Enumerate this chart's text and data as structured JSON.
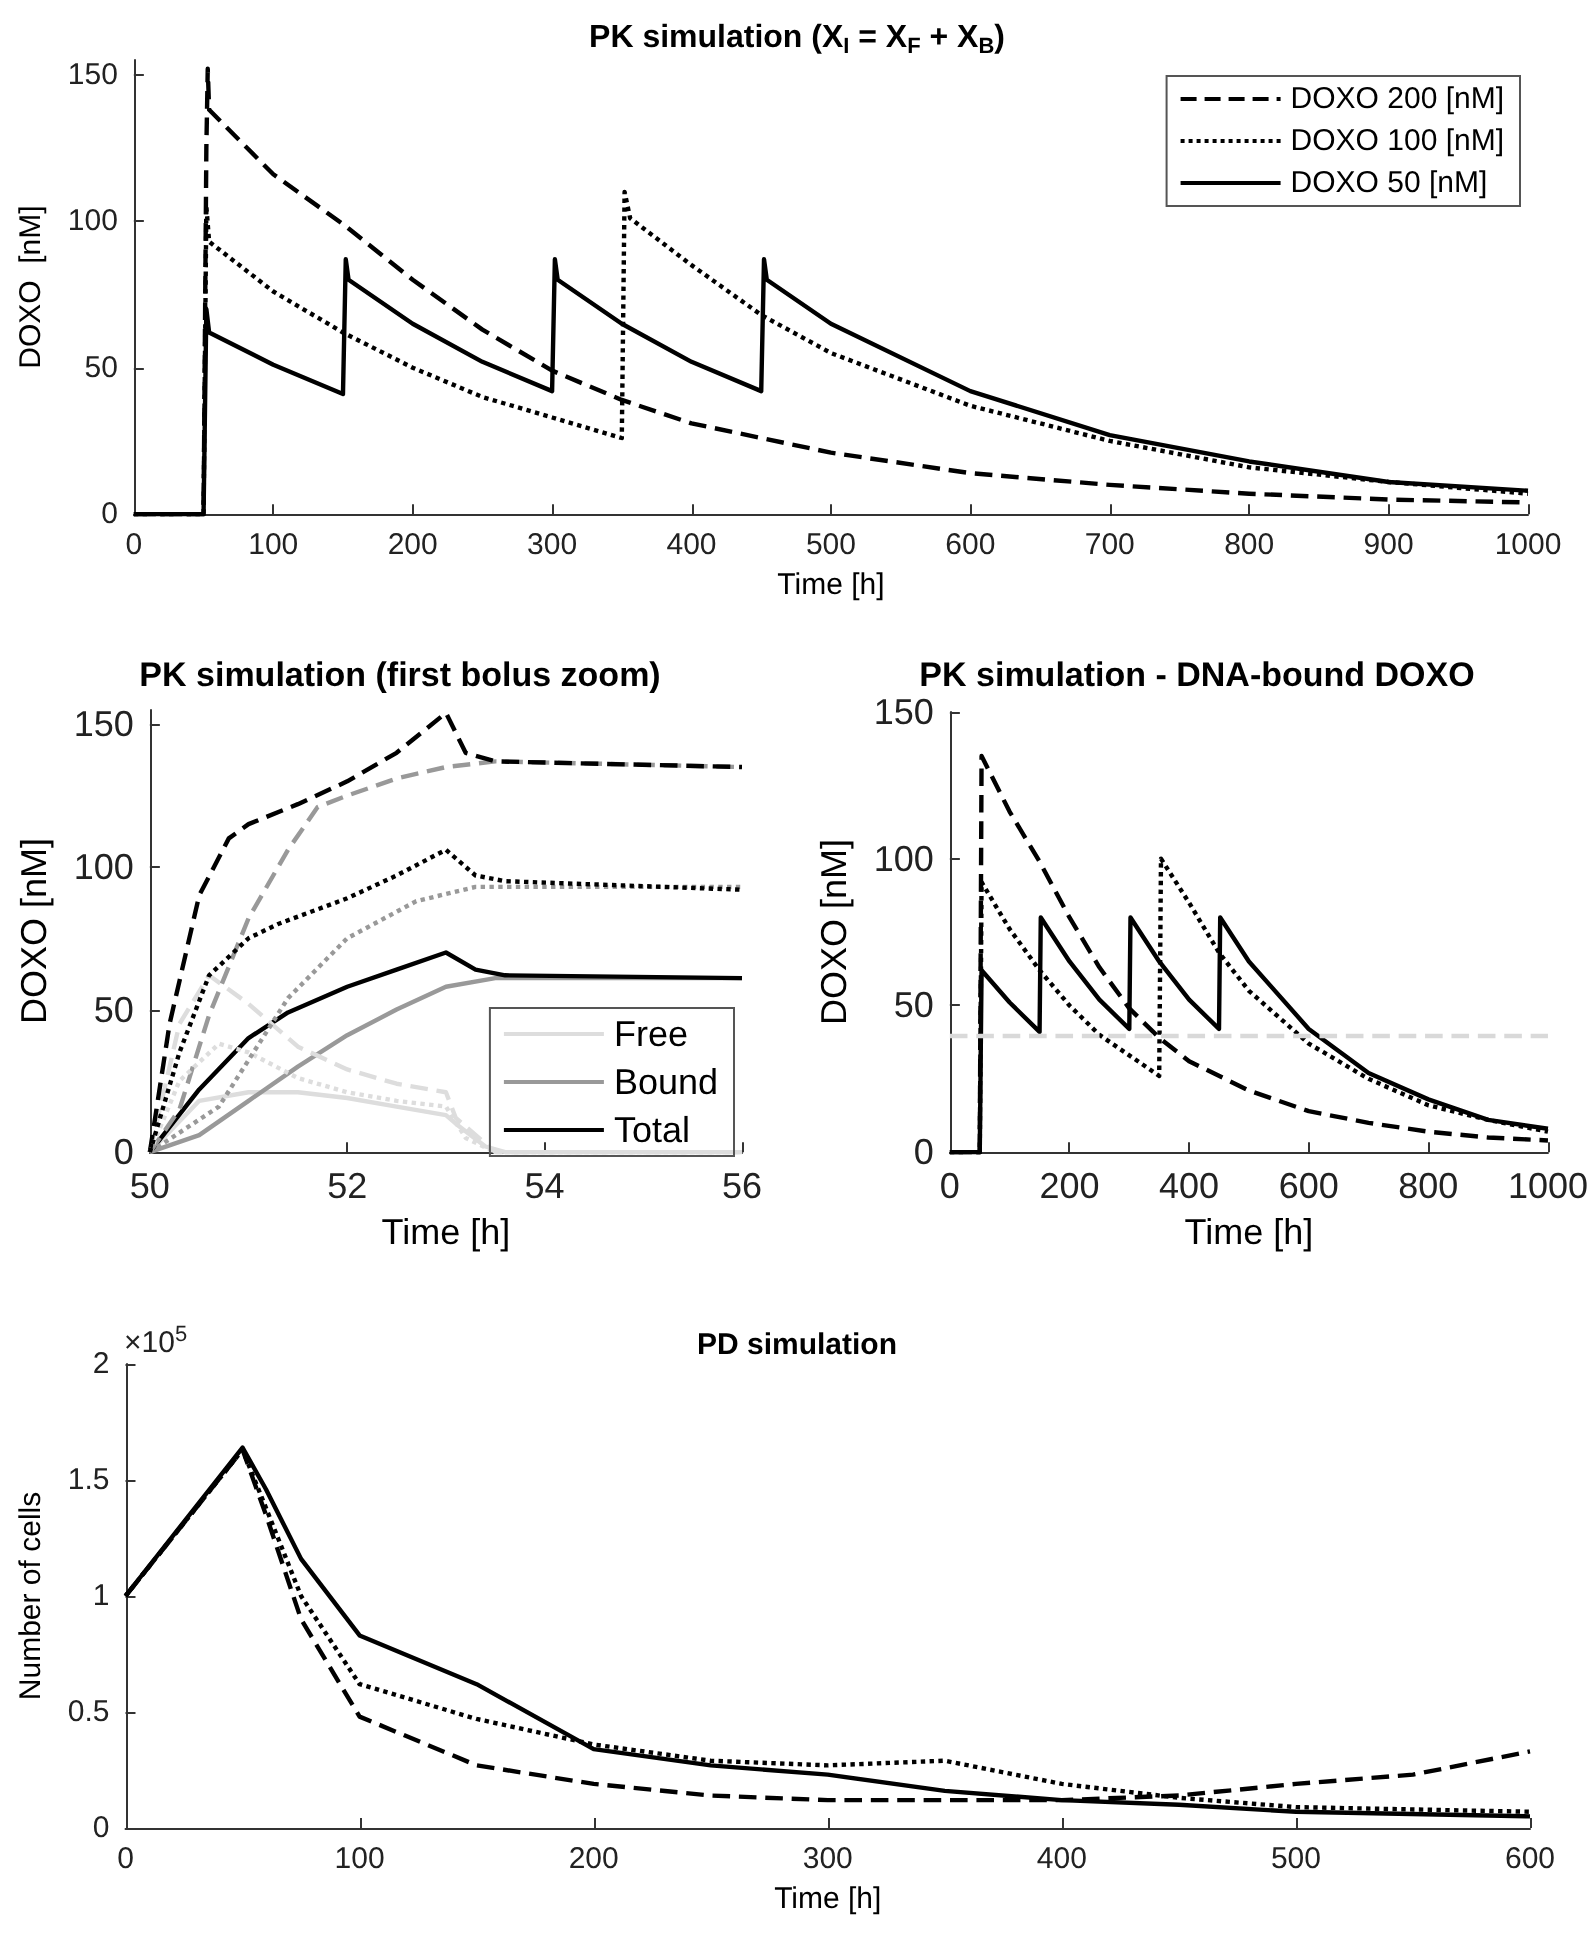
{
  "chart_data": [
    {
      "type": "line",
      "title": "PK simulation (X$_{I}$ = X$_{F}$ + X$_{B}$)",
      "xlabel": "Time [h]",
      "ylabel": "DOXO  [nM]",
      "xlim": [
        0,
        1000
      ],
      "xticks": [
        0,
        100,
        200,
        300,
        400,
        500,
        600,
        700,
        800,
        900,
        1000
      ],
      "ylim": [
        0,
        155
      ],
      "yticks": [
        0,
        50,
        100,
        150
      ],
      "legend": "top right",
      "marker": "none",
      "grid": false,
      "series": [
        {
          "name": "DOXO 200 [nM]",
          "color": "#000000",
          "line_style": "dashed",
          "x": [
            0,
            50,
            52,
            53,
            54,
            100,
            150,
            200,
            250,
            300,
            350,
            400,
            500,
            600,
            700,
            800,
            900,
            1000
          ],
          "values": [
            0,
            0,
            125,
            152,
            138,
            116,
            99,
            80,
            63,
            49,
            39,
            31,
            21,
            14,
            10,
            7,
            5,
            4
          ]
        },
        {
          "name": "DOXO 100 [nM]",
          "color": "#000000",
          "line_style": "dotted",
          "x": [
            0,
            50,
            52,
            54,
            100,
            150,
            200,
            250,
            300,
            350,
            352,
            356,
            400,
            450,
            500,
            600,
            700,
            800,
            900,
            1000
          ],
          "values": [
            0,
            0,
            105,
            93,
            76,
            62,
            50,
            40,
            33,
            26,
            110,
            101,
            85,
            68,
            55,
            37,
            25,
            16,
            11,
            7
          ]
        },
        {
          "name": "DOXO 50 [nM]",
          "color": "#000000",
          "line_style": "solid",
          "x": [
            0,
            50,
            52,
            54,
            100,
            150,
            152,
            154,
            200,
            250,
            300,
            302,
            304,
            350,
            400,
            450,
            452,
            454,
            500,
            600,
            700,
            800,
            900,
            1000
          ],
          "values": [
            0,
            0,
            70,
            62,
            51,
            41,
            87,
            80,
            65,
            52,
            42,
            87,
            80,
            65,
            52,
            42,
            87,
            80,
            65,
            42,
            27,
            18,
            11,
            8
          ]
        }
      ]
    },
    {
      "type": "line",
      "title": "PK simulation (first bolus zoom)",
      "xlabel": "Time [h]",
      "ylabel": "DOXO [nM]",
      "xlim": [
        50,
        56
      ],
      "xticks": [
        50,
        52,
        54,
        56
      ],
      "ylim": [
        0,
        155
      ],
      "yticks": [
        0,
        50,
        100,
        150
      ],
      "legend": "bottom right",
      "marker": "none",
      "grid": false,
      "series": [
        {
          "name": "Free",
          "color": "#dddddd",
          "line_style": "solid",
          "x": [
            50,
            50.5,
            51,
            51.5,
            52,
            52.5,
            53,
            53.1,
            53.4,
            53.6,
            56
          ],
          "values": [
            0,
            18,
            21,
            21,
            19,
            16,
            13,
            10,
            2,
            0,
            0
          ]
        },
        {
          "name": "Bound",
          "color": "#999999",
          "line_style": "solid",
          "x": [
            50,
            50.5,
            51,
            51.5,
            52,
            52.5,
            53,
            53.5,
            56
          ],
          "values": [
            0,
            6,
            18,
            30,
            41,
            50,
            58,
            61,
            61
          ]
        },
        {
          "name": "Total",
          "color": "#000000",
          "line_style": "solid",
          "x": [
            50,
            50.5,
            51,
            51.4,
            52,
            52.5,
            53,
            53.3,
            53.6,
            56
          ],
          "values": [
            0,
            22,
            40,
            49,
            58,
            64,
            70,
            64,
            62,
            61
          ]
        },
        {
          "color": "#dddddd",
          "line_style": "dashed",
          "x": [
            50,
            50.3,
            50.6,
            51,
            51.5,
            52,
            52.5,
            53,
            53.1,
            53.5,
            56
          ],
          "values": [
            0,
            45,
            62,
            52,
            37,
            29,
            24,
            21,
            12,
            0,
            0
          ]
        },
        {
          "color": "#999999",
          "line_style": "dashed",
          "x": [
            50,
            50.3,
            50.6,
            51,
            51.4,
            51.7,
            52,
            52.5,
            53,
            53.5,
            56
          ],
          "values": [
            0,
            15,
            48,
            82,
            106,
            121,
            125,
            131,
            135,
            137,
            135
          ]
        },
        {
          "color": "#000000",
          "line_style": "dashed",
          "x": [
            50,
            50.2,
            50.5,
            50.8,
            51,
            51.5,
            52,
            52.5,
            53,
            53.2,
            53.5,
            56
          ],
          "values": [
            0,
            45,
            90,
            110,
            115,
            122,
            130,
            140,
            154,
            140,
            137,
            135
          ]
        },
        {
          "color": "#dddddd",
          "line_style": "dotted",
          "x": [
            50,
            50.3,
            50.7,
            51,
            51.5,
            52,
            52.5,
            53,
            53.2,
            53.5,
            56
          ],
          "values": [
            0,
            25,
            38,
            35,
            26,
            21,
            18,
            16,
            5,
            0,
            0
          ]
        },
        {
          "color": "#999999",
          "line_style": "dotted",
          "x": [
            50,
            50.7,
            51.4,
            52,
            52.7,
            53.3,
            56
          ],
          "values": [
            0,
            16,
            54,
            75,
            88,
            93,
            93
          ]
        },
        {
          "color": "#000000",
          "line_style": "dotted",
          "x": [
            50,
            50.3,
            50.6,
            51,
            51.3,
            52,
            52.5,
            53,
            53.3,
            53.6,
            56
          ],
          "values": [
            0,
            35,
            62,
            75,
            80,
            89,
            97,
            106,
            97,
            95,
            92
          ]
        }
      ]
    },
    {
      "type": "line",
      "title": "PK simulation - DNA-bound DOXO",
      "xlabel": "Time [h]",
      "ylabel": "DOXO [nM]",
      "xlim": [
        0,
        1000
      ],
      "xticks": [
        0,
        200,
        400,
        600,
        800,
        1000
      ],
      "ylim": [
        0,
        150
      ],
      "yticks": [
        0,
        50,
        100,
        150
      ],
      "marker": "none",
      "grid": false,
      "ref_lines": [
        {
          "axis": "y",
          "value": 40,
          "color": "#d9d9d9",
          "line_style": "dashed"
        }
      ],
      "series": [
        {
          "color": "#000000",
          "line_style": "dashed",
          "x": [
            0,
            50,
            53,
            54,
            100,
            150,
            200,
            250,
            300,
            350,
            400,
            500,
            600,
            700,
            800,
            900,
            1000
          ],
          "values": [
            0,
            0,
            135,
            135,
            116,
            99,
            80,
            63,
            49,
            39,
            31,
            21,
            14,
            10,
            7,
            5,
            4
          ]
        },
        {
          "color": "#000000",
          "line_style": "dotted",
          "x": [
            0,
            50,
            53,
            100,
            150,
            200,
            250,
            300,
            350,
            353,
            400,
            450,
            500,
            600,
            700,
            800,
            900,
            1000
          ],
          "values": [
            0,
            0,
            92,
            76,
            62,
            50,
            40,
            33,
            26,
            100,
            85,
            68,
            55,
            37,
            25,
            16,
            11,
            7
          ]
        },
        {
          "color": "#000000",
          "line_style": "solid",
          "x": [
            0,
            50,
            53,
            100,
            150,
            152,
            200,
            250,
            300,
            302,
            350,
            400,
            450,
            452,
            500,
            600,
            700,
            800,
            900,
            1000
          ],
          "values": [
            0,
            0,
            62,
            51,
            41,
            80,
            65,
            52,
            42,
            80,
            65,
            52,
            42,
            80,
            65,
            42,
            27,
            18,
            11,
            8
          ]
        }
      ]
    },
    {
      "type": "line",
      "title": "PD simulation",
      "xlabel": "Time [h]",
      "ylabel": "Number of cells",
      "xlim": [
        0,
        600
      ],
      "xticks": [
        0,
        100,
        200,
        300,
        400,
        500,
        600
      ],
      "ylim": [
        0,
        2
      ],
      "yticks": [
        0,
        0.5,
        1,
        1.5,
        2
      ],
      "marker": "none",
      "grid": false,
      "annotations": [
        "×10$^{5}$"
      ],
      "series": [
        {
          "color": "#000000",
          "line_style": "dashed",
          "x": [
            0,
            50,
            60,
            75,
            100,
            150,
            200,
            250,
            300,
            350,
            400,
            450,
            500,
            550,
            600
          ],
          "values": [
            1,
            1.63,
            1.35,
            0.9,
            0.48,
            0.27,
            0.19,
            0.14,
            0.12,
            0.12,
            0.12,
            0.14,
            0.19,
            0.23,
            0.33
          ]
        },
        {
          "color": "#000000",
          "line_style": "dotted",
          "x": [
            0,
            50,
            60,
            75,
            100,
            150,
            200,
            250,
            300,
            350,
            400,
            450,
            500,
            600
          ],
          "values": [
            1,
            1.63,
            1.38,
            1,
            0.62,
            0.47,
            0.36,
            0.29,
            0.27,
            0.29,
            0.19,
            0.13,
            0.09,
            0.07
          ]
        },
        {
          "color": "#000000",
          "line_style": "solid",
          "x": [
            0,
            50,
            60,
            75,
            100,
            150,
            200,
            250,
            300,
            350,
            400,
            450,
            500,
            600
          ],
          "values": [
            1,
            1.64,
            1.46,
            1.16,
            0.83,
            0.62,
            0.34,
            0.27,
            0.23,
            0.16,
            0.12,
            0.1,
            0.07,
            0.05
          ]
        }
      ]
    }
  ]
}
